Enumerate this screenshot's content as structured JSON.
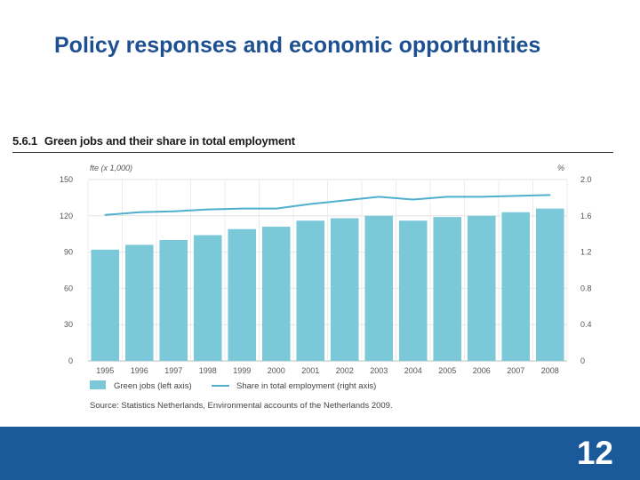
{
  "slide": {
    "title": "Policy responses and economic opportunities",
    "page_number": "12"
  },
  "colors": {
    "title": "#1d4f91",
    "bar": "#7ac8d8",
    "line": "#4eb0cc",
    "footer": "#1a5a9a"
  },
  "chart_data": {
    "type": "bar",
    "number": "5.6.1",
    "title": "Green jobs and their share in total employment",
    "left_unit": "fte (x 1,000)",
    "right_unit": "%",
    "categories": [
      "1995",
      "1996",
      "1997",
      "1998",
      "1999",
      "2000",
      "2001",
      "2002",
      "2003",
      "2004",
      "2005",
      "2006",
      "2007",
      "2008"
    ],
    "series": [
      {
        "name": "Green jobs (left axis)",
        "type": "bar",
        "axis": "left",
        "values": [
          92,
          96,
          100,
          104,
          109,
          111,
          116,
          118,
          120,
          116,
          119,
          120,
          123,
          126
        ]
      },
      {
        "name": "Share in total employment (right axis)",
        "type": "line",
        "axis": "right",
        "values": [
          1.61,
          1.64,
          1.65,
          1.67,
          1.68,
          1.68,
          1.73,
          1.77,
          1.81,
          1.78,
          1.81,
          1.81,
          1.82,
          1.83
        ]
      }
    ],
    "left_ticks": [
      "150",
      "120",
      "90",
      "60",
      "30",
      "0"
    ],
    "left_tick_values": [
      150,
      120,
      90,
      60,
      30,
      0
    ],
    "right_ticks": [
      "2.0",
      "1.6",
      "1.2",
      "0.8",
      "0.4",
      "0"
    ],
    "right_tick_values": [
      2.0,
      1.6,
      1.2,
      0.8,
      0.4,
      0
    ],
    "left_range": [
      0,
      150
    ],
    "right_range": [
      0,
      2.0
    ],
    "grid": true,
    "legend_position": "bottom-left",
    "source": "Source: Statistics Netherlands, Environmental accounts of the Netherlands 2009."
  }
}
